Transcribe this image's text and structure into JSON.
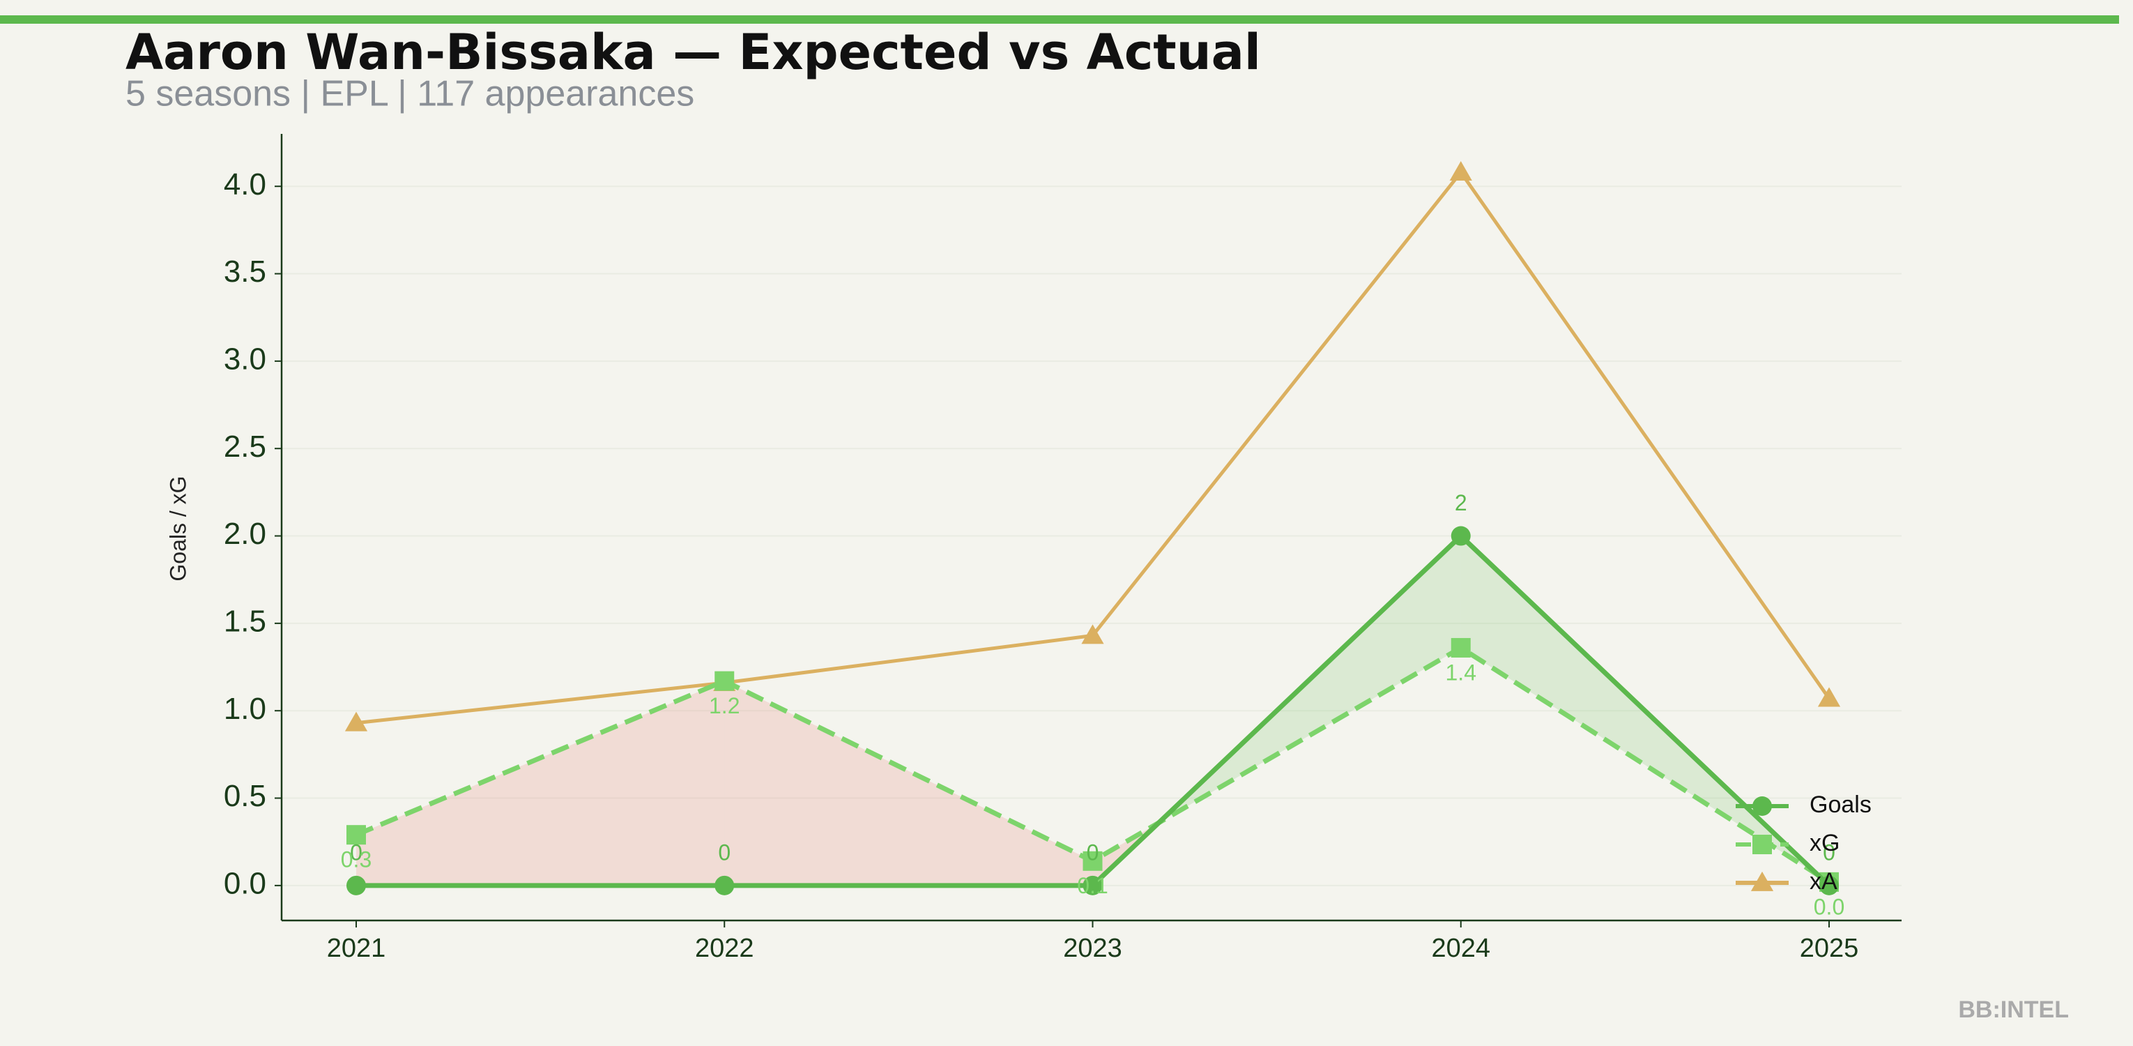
{
  "chart_data": {
    "type": "line",
    "title": "Aaron Wan-Bissaka — Expected vs Actual",
    "subtitle": "5 seasons | EPL | 117 appearances",
    "y_label": "Goals / xG",
    "watermark": "BB:INTEL",
    "categories": [
      "2021",
      "2022",
      "2023",
      "2024",
      "2025"
    ],
    "series": [
      {
        "name": "Goals",
        "color": "#5cb84d",
        "dash": false,
        "marker": "circle",
        "values": [
          0,
          0,
          0,
          2,
          0
        ]
      },
      {
        "name": "xG",
        "color": "#7dd46b",
        "dash": true,
        "marker": "square",
        "values": [
          0.29,
          1.17,
          0.14,
          1.36,
          0.02
        ],
        "value_labels": [
          "0.3",
          "1.2",
          "0.1",
          "1.4",
          "0.0"
        ]
      },
      {
        "name": "xA",
        "color": "#dbb060",
        "dash": false,
        "marker": "triangle",
        "values": [
          0.93,
          1.16,
          1.43,
          4.08,
          1.07
        ]
      }
    ],
    "ylim": [
      -0.2,
      4.3
    ],
    "yticks": [
      {
        "value": 0,
        "label": "0.0"
      },
      {
        "value": 0.5,
        "label": "0.5"
      },
      {
        "value": 1,
        "label": "1.0"
      },
      {
        "value": 1.5,
        "label": "1.5"
      },
      {
        "value": 2,
        "label": "2.0"
      },
      {
        "value": 2.5,
        "label": "2.5"
      },
      {
        "value": 3,
        "label": "3.0"
      },
      {
        "value": 3.5,
        "label": "3.5"
      },
      {
        "value": 4,
        "label": "4.0"
      }
    ],
    "grid": true,
    "legend": "lower-right",
    "fill_over_color": "#5cb84d",
    "fill_under_color": "#e8958a"
  }
}
